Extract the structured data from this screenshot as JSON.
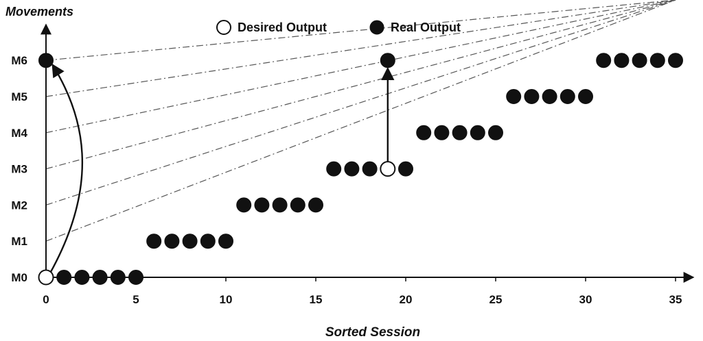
{
  "chart_data": {
    "type": "scatter",
    "xlabel": "Sorted Session",
    "ylabel": "Movements",
    "xlim": [
      0,
      35
    ],
    "x_ticks": [
      0,
      5,
      10,
      15,
      20,
      25,
      30,
      35
    ],
    "y_categories": [
      "M0",
      "M1",
      "M2",
      "M3",
      "M4",
      "M5",
      "M6"
    ],
    "gridlines": "dash-dot horizontal guide per movement level",
    "legend": {
      "placement": "top-center",
      "items": [
        {
          "name": "Desired Output",
          "marker": "hollow-circle"
        },
        {
          "name": "Real Output",
          "marker": "filled-circle"
        }
      ]
    },
    "series": [
      {
        "name": "Desired Output",
        "marker": "hollow-circle",
        "points": [
          {
            "x": 0,
            "y": "M0"
          },
          {
            "x": 19,
            "y": "M3"
          }
        ]
      },
      {
        "name": "Real Output",
        "marker": "filled-circle",
        "points": [
          {
            "x": 0,
            "y": "M6"
          },
          {
            "x": 1,
            "y": "M0"
          },
          {
            "x": 2,
            "y": "M0"
          },
          {
            "x": 3,
            "y": "M0"
          },
          {
            "x": 4,
            "y": "M0"
          },
          {
            "x": 5,
            "y": "M0"
          },
          {
            "x": 6,
            "y": "M1"
          },
          {
            "x": 7,
            "y": "M1"
          },
          {
            "x": 8,
            "y": "M1"
          },
          {
            "x": 9,
            "y": "M1"
          },
          {
            "x": 10,
            "y": "M1"
          },
          {
            "x": 11,
            "y": "M2"
          },
          {
            "x": 12,
            "y": "M2"
          },
          {
            "x": 13,
            "y": "M2"
          },
          {
            "x": 14,
            "y": "M2"
          },
          {
            "x": 15,
            "y": "M2"
          },
          {
            "x": 16,
            "y": "M3"
          },
          {
            "x": 17,
            "y": "M3"
          },
          {
            "x": 18,
            "y": "M3"
          },
          {
            "x": 19,
            "y": "M6"
          },
          {
            "x": 20,
            "y": "M3"
          },
          {
            "x": 21,
            "y": "M4"
          },
          {
            "x": 22,
            "y": "M4"
          },
          {
            "x": 23,
            "y": "M4"
          },
          {
            "x": 24,
            "y": "M4"
          },
          {
            "x": 25,
            "y": "M4"
          },
          {
            "x": 26,
            "y": "M5"
          },
          {
            "x": 27,
            "y": "M5"
          },
          {
            "x": 28,
            "y": "M5"
          },
          {
            "x": 29,
            "y": "M5"
          },
          {
            "x": 30,
            "y": "M5"
          },
          {
            "x": 31,
            "y": "M6"
          },
          {
            "x": 32,
            "y": "M6"
          },
          {
            "x": 33,
            "y": "M6"
          },
          {
            "x": 34,
            "y": "M6"
          },
          {
            "x": 35,
            "y": "M6"
          }
        ]
      }
    ],
    "annotations": [
      {
        "type": "curved-arrow",
        "from": {
          "x": 0,
          "y": "M0"
        },
        "to": {
          "x": 0,
          "y": "M6"
        }
      },
      {
        "type": "straight-arrow",
        "from": {
          "x": 19,
          "y": "M3"
        },
        "to": {
          "x": 19,
          "y": "M6"
        }
      }
    ],
    "colors": {
      "ink": "#111111",
      "grid": "#555555",
      "hollow_fill": "#ffffff"
    }
  }
}
